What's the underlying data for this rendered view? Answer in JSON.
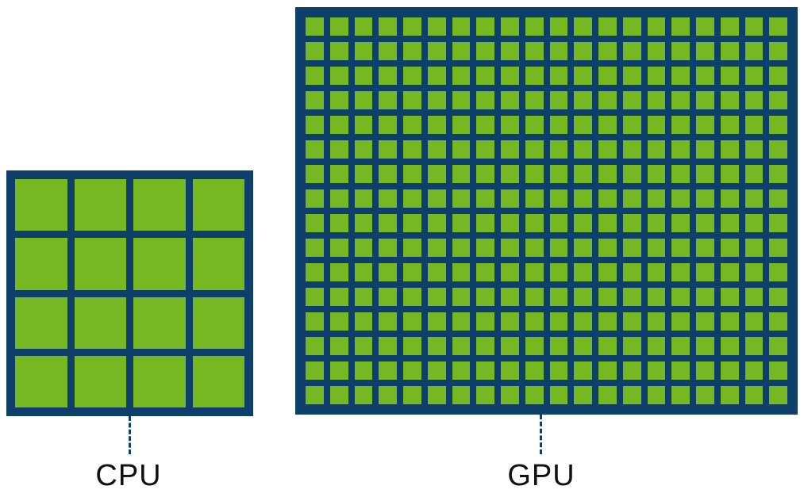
{
  "colors": {
    "chip_border": "#0d3f6a",
    "core_fill": "#76b821"
  },
  "cpu": {
    "label": "CPU",
    "core_rows": 4,
    "core_cols": 4
  },
  "gpu": {
    "label": "GPU",
    "core_rows": 16,
    "core_cols": 20
  }
}
